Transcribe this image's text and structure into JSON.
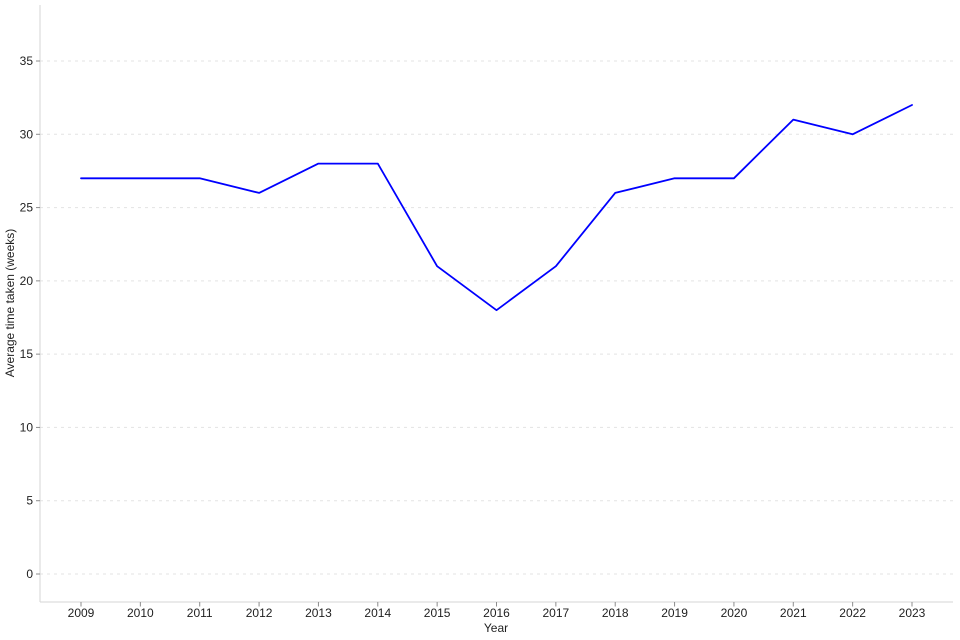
{
  "chart_data": {
    "type": "line",
    "title": "",
    "xlabel": "Year",
    "ylabel": "Average time taken (weeks)",
    "categories": [
      2009,
      2010,
      2011,
      2012,
      2013,
      2014,
      2015,
      2016,
      2017,
      2018,
      2019,
      2020,
      2021,
      2022,
      2023
    ],
    "series": [
      {
        "name": "Average time taken (weeks)",
        "color": "#0000ff",
        "values": [
          27,
          27,
          27,
          26,
          28,
          28,
          21,
          18,
          21,
          26,
          27,
          27,
          31,
          30,
          32
        ]
      }
    ],
    "ylim": [
      0,
      35
    ],
    "yticks": [
      0,
      5,
      10,
      15,
      20,
      25,
      30,
      35
    ],
    "grid": "horizontal-dashed",
    "legend": "none",
    "colors": {
      "line": "#0000ff",
      "gridline": "#e3e3e3",
      "axis_line": "#d6d6d6",
      "tick_mark": "#8c8c8c",
      "text": "#1f1f1f",
      "background": "#ffffff"
    }
  }
}
